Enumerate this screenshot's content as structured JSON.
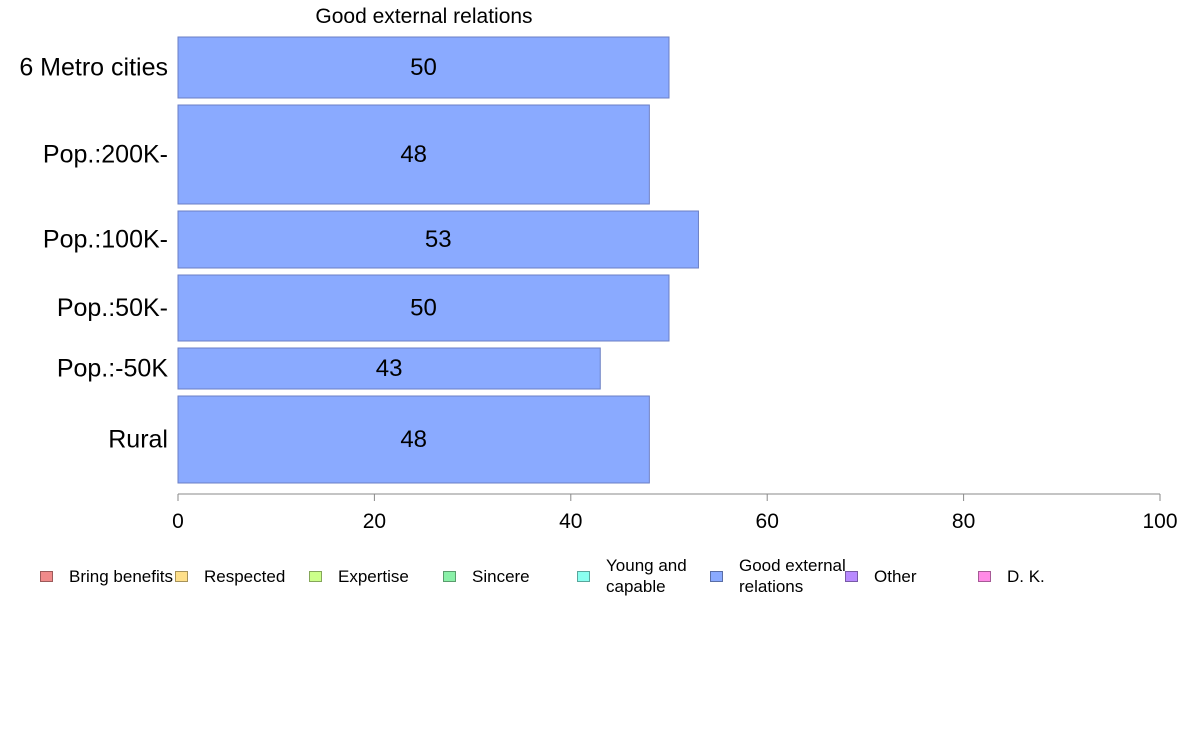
{
  "chart_data": {
    "type": "bar",
    "orientation": "horizontal",
    "title": "Good external relations",
    "categories": [
      "6 Metro cities",
      "Pop.:200K-",
      "Pop.:100K-",
      "Pop.:50K-",
      "Pop.:-50K",
      "Rural"
    ],
    "series": [
      {
        "name": "Good external relations",
        "values": [
          50,
          48,
          53,
          50,
          43,
          48
        ]
      }
    ],
    "data_labels": [
      "50",
      "48",
      "53",
      "50",
      "43",
      "48"
    ],
    "xlim": [
      0,
      100
    ],
    "xticks": [
      0,
      20,
      40,
      60,
      80,
      100
    ],
    "xtick_labels": [
      "0",
      "20",
      "40",
      "60",
      "80",
      "100"
    ],
    "xlabel": "",
    "ylabel": "",
    "grid": false,
    "legend_position": "bottom",
    "bar_color": "#8aaaff",
    "legend": [
      {
        "label": "Bring benefits",
        "color": "#f08a8a"
      },
      {
        "label": "Respected",
        "color": "#ffe08a"
      },
      {
        "label": "Expertise",
        "color": "#ccff8a"
      },
      {
        "label": "Sincere",
        "color": "#8af0a8"
      },
      {
        "label": "Young and capable",
        "color": "#8afff0"
      },
      {
        "label": "Good external relations",
        "color": "#8aaaff"
      },
      {
        "label": "Other",
        "color": "#b88aff"
      },
      {
        "label": "D. K.",
        "color": "#ff8ae6"
      }
    ]
  }
}
